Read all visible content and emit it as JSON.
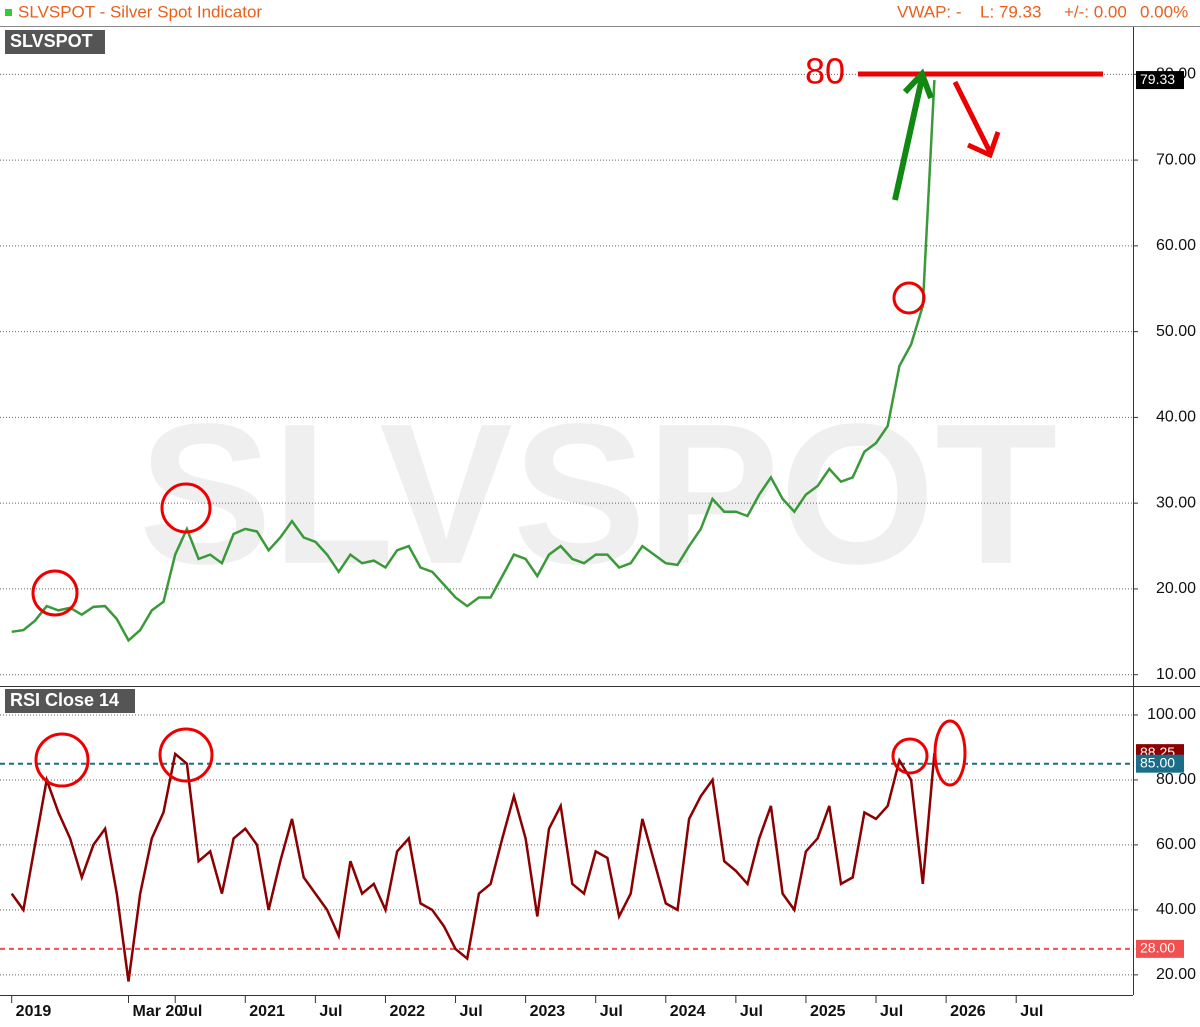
{
  "header": {
    "title": "SLVSPOT - Silver Spot Indicator",
    "vwap": "VWAP: -",
    "last": "L: 79.33",
    "change": "+/-: 0.00",
    "change_pct": "0.00%"
  },
  "chart_data": [
    {
      "type": "line",
      "label": "SLVSPOT",
      "watermark": "SLVSPOT",
      "annotation": "80",
      "x": [
        "2019-05",
        "2019-06",
        "2019-07",
        "2019-08",
        "2019-09",
        "2019-10",
        "2019-11",
        "2019-12",
        "2020-01",
        "2020-02",
        "2020-03",
        "2020-04",
        "2020-05",
        "2020-06",
        "2020-07",
        "2020-08",
        "2020-09",
        "2020-10",
        "2020-11",
        "2020-12",
        "2021-01",
        "2021-02",
        "2021-03",
        "2021-04",
        "2021-05",
        "2021-06",
        "2021-07",
        "2021-08",
        "2021-09",
        "2021-10",
        "2021-11",
        "2021-12",
        "2022-01",
        "2022-02",
        "2022-03",
        "2022-04",
        "2022-05",
        "2022-06",
        "2022-07",
        "2022-08",
        "2022-09",
        "2022-10",
        "2022-11",
        "2022-12",
        "2023-01",
        "2023-02",
        "2023-03",
        "2023-04",
        "2023-05",
        "2023-06",
        "2023-07",
        "2023-08",
        "2023-09",
        "2023-10",
        "2023-11",
        "2023-12",
        "2024-01",
        "2024-02",
        "2024-03",
        "2024-04",
        "2024-05",
        "2024-06",
        "2024-07",
        "2024-08",
        "2024-09",
        "2024-10",
        "2024-11",
        "2024-12",
        "2025-01",
        "2025-02",
        "2025-03",
        "2025-04",
        "2025-05",
        "2025-06",
        "2025-07",
        "2025-08",
        "2025-09",
        "2025-10",
        "2025-11",
        "2025-12"
      ],
      "series": [
        {
          "name": "SLVSPOT",
          "color": "#3a9a3a",
          "values": [
            15,
            15.2,
            16.3,
            18,
            17.5,
            17.8,
            17,
            17.9,
            18,
            16.5,
            14,
            15.2,
            17.5,
            18.5,
            24,
            27,
            23.5,
            24,
            23,
            26.4,
            27,
            26.7,
            24.5,
            26,
            27.9,
            26,
            25.5,
            24,
            22,
            24,
            23,
            23.3,
            22.5,
            24.5,
            25,
            22.5,
            22,
            20.5,
            19,
            18,
            19,
            19,
            21.5,
            24,
            23.5,
            21.5,
            24,
            25,
            23.5,
            23,
            24,
            24,
            22.5,
            23,
            25,
            24,
            23,
            22.8,
            25,
            27,
            30.5,
            29,
            29,
            28.5,
            31,
            33,
            30.5,
            29,
            31,
            32,
            34,
            32.5,
            33,
            36,
            37,
            39,
            46,
            48.5,
            53,
            79.33
          ]
        }
      ],
      "xlim": [
        "2019-04",
        "2027-05"
      ],
      "ylim": [
        8.8,
        85.4
      ],
      "yticks": [
        {
          "value": 10,
          "label": "10.00"
        },
        {
          "value": 20,
          "label": "20.00"
        },
        {
          "value": 30,
          "label": "30.00"
        },
        {
          "value": 40,
          "label": "40.00"
        },
        {
          "value": 50,
          "label": "50.00"
        },
        {
          "value": 60,
          "label": "60.00"
        },
        {
          "value": 70,
          "label": "70.00"
        },
        {
          "value": 80,
          "label": "80.00"
        }
      ],
      "levels": [
        {
          "value": 79.33,
          "label": "79.33",
          "color": "#000000"
        }
      ],
      "grid": true
    },
    {
      "type": "line",
      "label": "RSI  Close 14",
      "x": [
        "2019-05",
        "2019-06",
        "2019-07",
        "2019-08",
        "2019-09",
        "2019-10",
        "2019-11",
        "2019-12",
        "2020-01",
        "2020-02",
        "2020-03",
        "2020-04",
        "2020-05",
        "2020-06",
        "2020-07",
        "2020-08",
        "2020-09",
        "2020-10",
        "2020-11",
        "2020-12",
        "2021-01",
        "2021-02",
        "2021-03",
        "2021-04",
        "2021-05",
        "2021-06",
        "2021-07",
        "2021-08",
        "2021-09",
        "2021-10",
        "2021-11",
        "2021-12",
        "2022-01",
        "2022-02",
        "2022-03",
        "2022-04",
        "2022-05",
        "2022-06",
        "2022-07",
        "2022-08",
        "2022-09",
        "2022-10",
        "2022-11",
        "2022-12",
        "2023-01",
        "2023-02",
        "2023-03",
        "2023-04",
        "2023-05",
        "2023-06",
        "2023-07",
        "2023-08",
        "2023-09",
        "2023-10",
        "2023-11",
        "2023-12",
        "2024-01",
        "2024-02",
        "2024-03",
        "2024-04",
        "2024-05",
        "2024-06",
        "2024-07",
        "2024-08",
        "2024-09",
        "2024-10",
        "2024-11",
        "2024-12",
        "2025-01",
        "2025-02",
        "2025-03",
        "2025-04",
        "2025-05",
        "2025-06",
        "2025-07",
        "2025-08",
        "2025-09",
        "2025-10",
        "2025-11",
        "2025-12"
      ],
      "series": [
        {
          "name": "RSI",
          "color": "#8b0000",
          "values": [
            45,
            40,
            60,
            80,
            70,
            62,
            50,
            60,
            65,
            45,
            18,
            45,
            62,
            70,
            88,
            85,
            55,
            58,
            45,
            62,
            65,
            60,
            40,
            55,
            68,
            50,
            45,
            40,
            32,
            55,
            45,
            48,
            40,
            58,
            62,
            42,
            40,
            35,
            28,
            25,
            45,
            48,
            62,
            75,
            62,
            38,
            65,
            72,
            48,
            45,
            58,
            56,
            38,
            45,
            68,
            55,
            42,
            40,
            68,
            75,
            80,
            55,
            52,
            48,
            62,
            72,
            45,
            40,
            58,
            62,
            72,
            48,
            50,
            70,
            68,
            72,
            86,
            80,
            48,
            88.25
          ]
        }
      ],
      "xlim": [
        "2019-04",
        "2027-05"
      ],
      "xticks": [
        {
          "value": "2019-05",
          "label": "2019"
        },
        {
          "value": "2020-03",
          "label": "Mar 20"
        },
        {
          "value": "2020-07",
          "label": "Jul"
        },
        {
          "value": "2021-01",
          "label": "2021"
        },
        {
          "value": "2021-07",
          "label": "Jul"
        },
        {
          "value": "2022-01",
          "label": "2022"
        },
        {
          "value": "2022-07",
          "label": "Jul"
        },
        {
          "value": "2023-01",
          "label": "2023"
        },
        {
          "value": "2023-07",
          "label": "Jul"
        },
        {
          "value": "2024-01",
          "label": "2024"
        },
        {
          "value": "2024-07",
          "label": "Jul"
        },
        {
          "value": "2025-01",
          "label": "2025"
        },
        {
          "value": "2025-07",
          "label": "Jul"
        },
        {
          "value": "2026-01",
          "label": "2026"
        },
        {
          "value": "2026-07",
          "label": "Jul"
        }
      ],
      "ylim": [
        13.8,
        108.3
      ],
      "yticks": [
        {
          "value": 20,
          "label": "20.00"
        },
        {
          "value": 40,
          "label": "40.00"
        },
        {
          "value": 60,
          "label": "60.00"
        },
        {
          "value": 80,
          "label": "80.00"
        },
        {
          "value": 100,
          "label": "100.00"
        }
      ],
      "levels": [
        {
          "value": 88.25,
          "label": "88.25",
          "color": "#8b0000"
        },
        {
          "value": 85,
          "label": "85.00",
          "color": "#1a6e8a",
          "dashed": true
        },
        {
          "value": 28,
          "label": "28.00",
          "color": "#f05050",
          "dashed": true
        }
      ],
      "grid": true
    }
  ]
}
